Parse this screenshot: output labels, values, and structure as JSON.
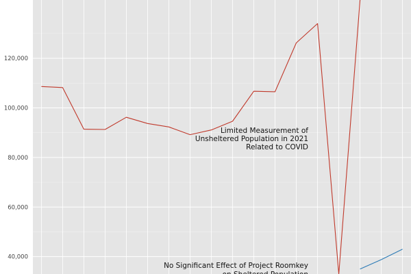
{
  "chart_data": {
    "type": "line",
    "ylim": [
      33000,
      143500
    ],
    "xlim": [
      2006.6,
      2024.4
    ],
    "grid": true,
    "y_ticks": [
      40000,
      60000,
      80000,
      100000,
      120000
    ],
    "y_tick_labels": [
      "40,000",
      "60,000",
      "80,000",
      "100,000",
      "120,000"
    ],
    "series": [
      {
        "color": "#c0392b",
        "x": [
          2007,
          2008,
          2009,
          2010,
          2011,
          2012,
          2013,
          2014,
          2015,
          2016,
          2017,
          2018,
          2019,
          2020,
          2021,
          2022
        ],
        "y": [
          108600,
          108200,
          91400,
          91300,
          96200,
          93700,
          92300,
          89200,
          91100,
          94600,
          106700,
          106500,
          126200,
          134000,
          33000,
          143500
        ]
      },
      {
        "color": "#2c7bb6",
        "x": [
          2022,
          2023,
          2024
        ],
        "y": [
          35000,
          38800,
          43000
        ]
      }
    ],
    "annotations": [
      {
        "lines": [
          "Limited Measurement of",
          "Unsheltered Population in 2021",
          "Related to COVID"
        ]
      },
      {
        "lines": [
          "No Significant Effect of Project Roomkey",
          "on Sheltered Population"
        ]
      }
    ]
  }
}
